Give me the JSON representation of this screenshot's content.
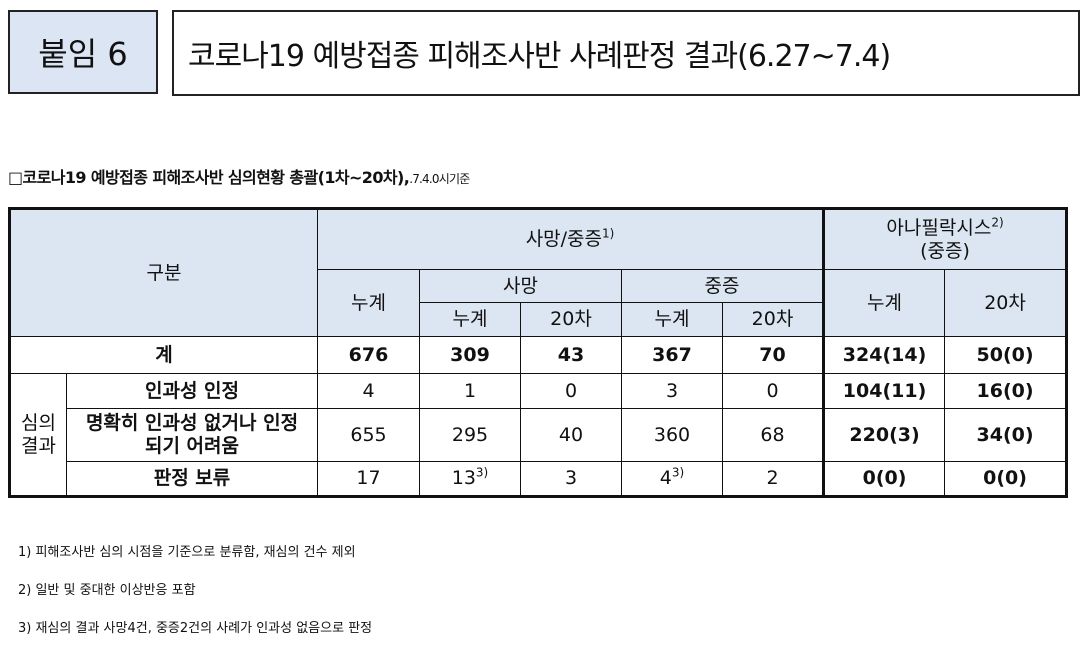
{
  "header": {
    "label": "붙임 6",
    "title": "코로나19 예방접종 피해조사반 사례판정 결과(6.27~7.4)"
  },
  "subtitle": {
    "text": "□코로나19 예방접종 피해조사반 심의현황 총괄(1차~20차),",
    "basis": ".7.4.0시기준"
  },
  "table": {
    "header": {
      "category": "구분",
      "death_serious": "사망/중증",
      "death_serious_note": "1)",
      "anaphylaxis": "아나필락시스",
      "anaphylaxis_note": "2)",
      "anaphylaxis_sub": "(중증)",
      "cumulative": "누계",
      "death": "사망",
      "serious": "중증",
      "cum": "누계",
      "round20": "20차"
    },
    "sum_row": {
      "label": "계",
      "values": [
        "676",
        "309",
        "43",
        "367",
        "70",
        "324(14)",
        "50(0)"
      ]
    },
    "group_label": "심의\n결과",
    "rows": [
      {
        "label": "인과성 인정",
        "values": [
          "4",
          "1",
          "0",
          "3",
          "0",
          "104(11)",
          "16(0)"
        ]
      },
      {
        "label": "명확히 인과성 없거나 인정\n되기 어려움",
        "values": [
          "655",
          "295",
          "40",
          "360",
          "68",
          "220(3)",
          "34(0)"
        ]
      },
      {
        "label": "판정 보류",
        "values": [
          "17",
          "13",
          "3",
          "4",
          "2",
          "0(0)",
          "0(0)"
        ],
        "notes": [
          "",
          "3)",
          "",
          "3)",
          "",
          "",
          ""
        ]
      }
    ]
  },
  "footnotes": [
    "1) 피해조사반 심의 시점을 기준으로 분류함, 재심의 건수 제외",
    "2) 일반 및 중대한 이상반응 포함",
    "3) 재심의 결과 사망4건, 중증2건의 사례가 인과성 없음으로 판정"
  ]
}
